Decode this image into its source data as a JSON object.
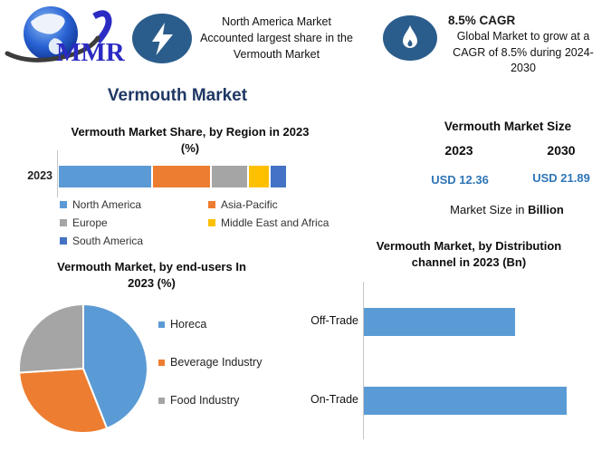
{
  "header": {
    "logo_text": "MMR",
    "highlight_share": {
      "icon": "lightning-bolt",
      "lines": [
        "North America Market",
        "Accounted largest share in the",
        "Vermouth Market"
      ]
    },
    "highlight_cagr": {
      "icon": "flame",
      "title": "8.5% CAGR",
      "lines": [
        "Global Market to grow at a",
        "CAGR of 8.5% during 2024-",
        "2030"
      ]
    }
  },
  "page_title": "Vermouth Market",
  "market_size_panel": {
    "title": "Vermouth Market Size",
    "years": [
      "2023",
      "2030"
    ],
    "values": [
      "USD 12.36",
      "USD 21.89"
    ],
    "note_text": "Market Size in",
    "note_bold": "Billion"
  },
  "colors": {
    "badge_blue": "#2B5D8C",
    "title_navy": "#1F3864",
    "value_blue": "#2E75B6",
    "chart_blue": "#5B9BD5",
    "chart_orange": "#ED7D31",
    "chart_gray": "#A5A5A5",
    "chart_yellow": "#FFC000",
    "chart_darkblue": "#4472C4",
    "logo_blue": "#2B2BC4",
    "axis_gray": "#C6C6C6"
  },
  "chart_data": [
    {
      "id": "market-share-by-region",
      "type": "bar",
      "subtype": "stacked-horizontal",
      "title": "Vermouth Market Share, by Region in 2023 (%)",
      "title_lines": [
        "Vermouth Market Share, by Region in 2023",
        "(%)"
      ],
      "categories": [
        "2023"
      ],
      "series": [
        {
          "name": "North America",
          "values": [
            42
          ],
          "color": "#5B9BD5"
        },
        {
          "name": "Asia-Pacific",
          "values": [
            26
          ],
          "color": "#ED7D31"
        },
        {
          "name": "Europe",
          "values": [
            16
          ],
          "color": "#A5A5A5"
        },
        {
          "name": "Middle East and Africa",
          "values": [
            9
          ],
          "color": "#FFC000"
        },
        {
          "name": "South America",
          "values": [
            7
          ],
          "color": "#4472C4"
        }
      ],
      "unit": "%",
      "xlim": [
        0,
        100
      ],
      "grid": false,
      "legend_position": "bottom"
    },
    {
      "id": "market-by-end-users",
      "type": "pie",
      "title": "Vermouth Market, by end-users In 2023 (%)",
      "title_lines": [
        "Vermouth Market, by end-users In",
        "2023 (%)"
      ],
      "labels": [
        "Horeca",
        "Beverage Industry",
        "Food Industry"
      ],
      "values": [
        44,
        30,
        26
      ],
      "colors": [
        "#5B9BD5",
        "#ED7D31",
        "#A5A5A5"
      ],
      "unit": "%",
      "start_angle_deg": 0,
      "direction": "clockwise",
      "legend_position": "right"
    },
    {
      "id": "market-by-distribution-channel",
      "type": "bar",
      "subtype": "horizontal",
      "title": "Vermouth Market, by Distribution channel in 2023 (Bn)",
      "title_lines": [
        "Vermouth Market, by Distribution",
        "channel in 2023 (Bn)"
      ],
      "categories": [
        "Off-Trade",
        "On-Trade"
      ],
      "values": [
        5.3,
        7.1
      ],
      "unit": "Bn",
      "xlim": [
        0,
        7.6
      ],
      "grid": false,
      "legend_position": "none"
    }
  ]
}
